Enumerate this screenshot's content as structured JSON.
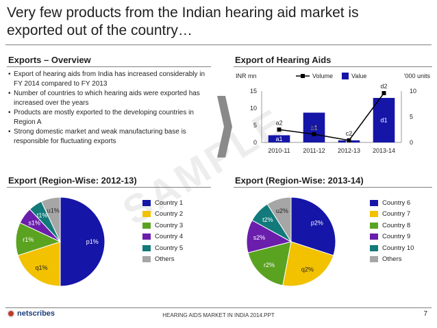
{
  "title": "Very few products from the Indian hearing aid market is exported out of the country…",
  "overview": {
    "heading": "Exports – Overview",
    "bullets": [
      "Export of hearing aids from India has increased considerably in FY 2014 compared to FY 2013",
      "Number of countries to which hearing aids were exported has increased over the years",
      "Products are mostly exported to the developing countries in Region A",
      "Strong domestic market and weak manufacturing base is responsible for fluctuating exports"
    ]
  },
  "watermark": "SAMPLE",
  "chart_data": [
    {
      "type": "bar",
      "title": "Export of Hearing Aids",
      "left_unit": "INR mn",
      "right_unit": "’000 units",
      "categories": [
        "2010-11",
        "2011-12",
        "2012-13",
        "2013-14"
      ],
      "series": [
        {
          "name": "Value",
          "kind": "bar",
          "axis": "left",
          "values": [
            2.1,
            8.7,
            0.6,
            13.0
          ],
          "labels": [
            "a1",
            "b1",
            "c1",
            "d1"
          ],
          "color": "#1515a8"
        },
        {
          "name": "Volume",
          "kind": "line",
          "axis": "right",
          "values": [
            2.5,
            1.6,
            0.4,
            9.6
          ],
          "labels": [
            "a2",
            "b2",
            "c2",
            "d2"
          ],
          "color": "#000000"
        }
      ],
      "ylim_left": [
        0,
        15
      ],
      "yticks_left": [
        0,
        5,
        10,
        15
      ],
      "ylim_right": [
        0,
        10
      ],
      "yticks_right": [
        0,
        5,
        10
      ],
      "legend": "top"
    },
    {
      "type": "pie",
      "title": "Export (Region-Wise: 2012-13)",
      "slices": [
        {
          "name": "Country 1",
          "value": 50,
          "label": "p1%",
          "color": "#1515a8"
        },
        {
          "name": "Country 2",
          "value": 20,
          "label": "q1%",
          "color": "#f2c100"
        },
        {
          "name": "Country 3",
          "value": 12,
          "label": "r1%",
          "color": "#5aa321"
        },
        {
          "name": "Country 4",
          "value": 6,
          "label": "s1%",
          "color": "#6a1eab"
        },
        {
          "name": "Country 5",
          "value": 5,
          "label": "t1%",
          "color": "#127a7a"
        },
        {
          "name": "Others",
          "value": 7,
          "label": "u1%",
          "color": "#a6a6a6"
        }
      ],
      "legend": "right"
    },
    {
      "type": "pie",
      "title": "Export (Region-Wise: 2013-14)",
      "slices": [
        {
          "name": "Country 6",
          "value": 30,
          "label": "p2%",
          "color": "#1515a8"
        },
        {
          "name": "Country 7",
          "value": 23,
          "label": "q2%",
          "color": "#f2c100"
        },
        {
          "name": "Country 8",
          "value": 18,
          "label": "r2%",
          "color": "#5aa321"
        },
        {
          "name": "Country 9",
          "value": 12,
          "label": "s2%",
          "color": "#6a1eab"
        },
        {
          "name": "Country 10",
          "value": 8,
          "label": "t2%",
          "color": "#127a7a"
        },
        {
          "name": "Others",
          "value": 9,
          "label": "u2%",
          "color": "#a6a6a6"
        }
      ],
      "legend": "right"
    }
  ],
  "footer": {
    "logo": "netscribes",
    "text": "HEARING AIDS MARKET IN INDIA 2014.PPT",
    "page": "7"
  }
}
